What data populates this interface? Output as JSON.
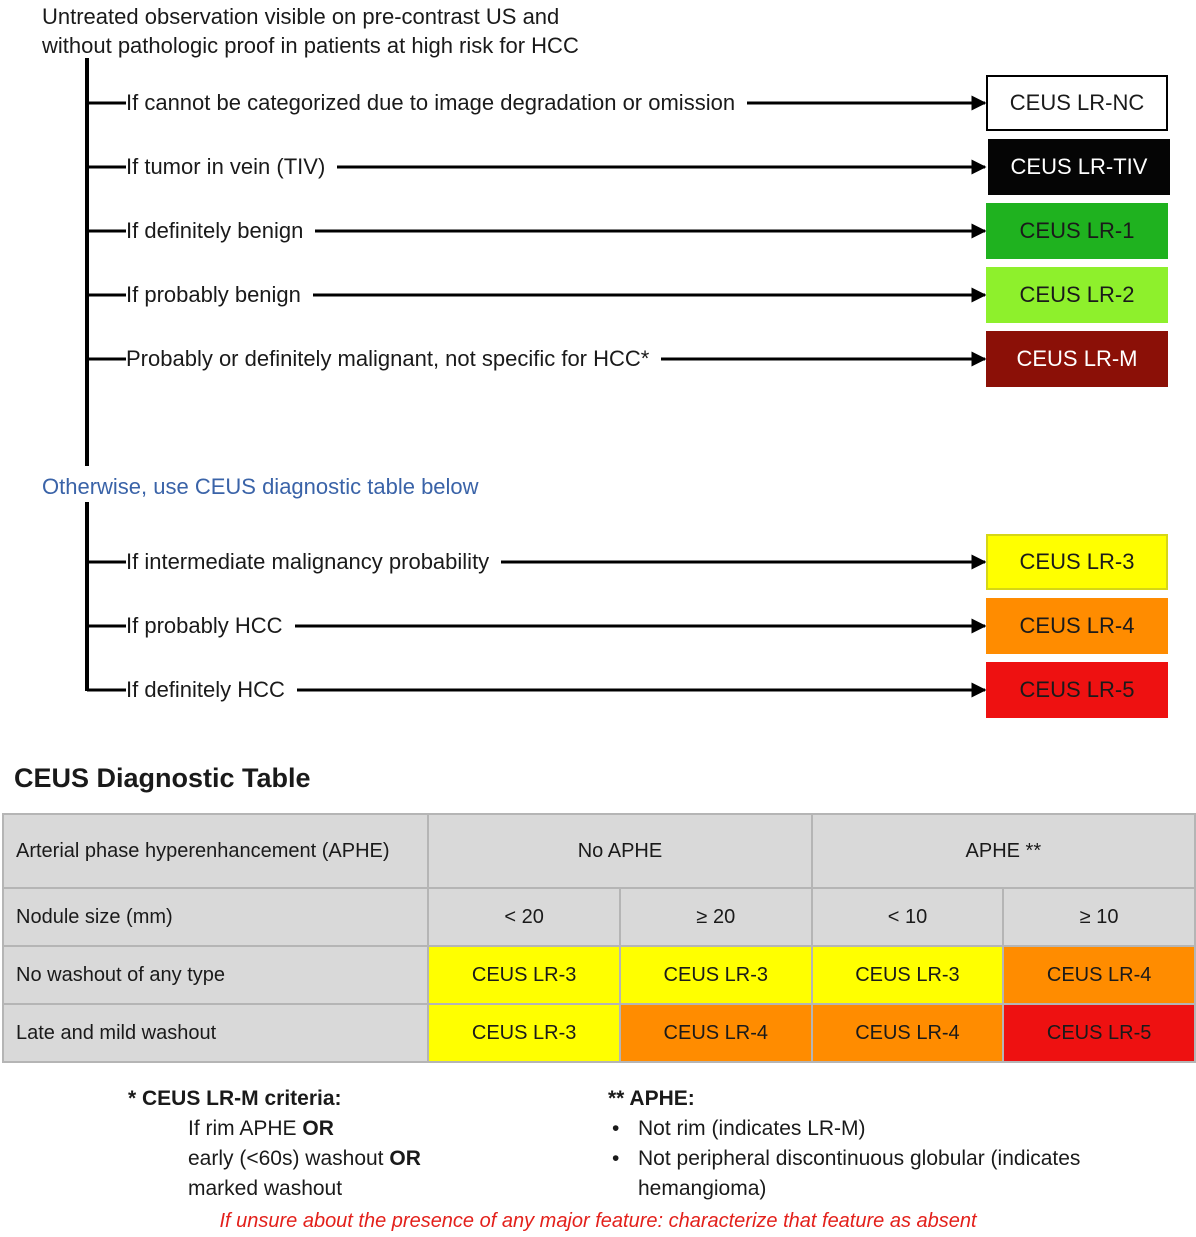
{
  "intro": {
    "line1": "Untreated observation visible on pre-contrast US and",
    "line2": "without pathologic proof in patients at high risk for HCC"
  },
  "branches": [
    {
      "text": "If cannot be categorized due to image degradation or omission",
      "result": "CEUS LR-NC",
      "bg": "#ffffff",
      "fg": "#1a1a1a"
    },
    {
      "text": "If tumor in vein (TIV)",
      "result": "CEUS LR-TIV",
      "bg": "#050505",
      "fg": "#ffffff"
    },
    {
      "text": "If definitely benign",
      "result": "CEUS LR-1",
      "bg": "#1fb21f",
      "fg": "#1a1a1a"
    },
    {
      "text": "If probably benign",
      "result": "CEUS LR-2",
      "bg": "#8ef02c",
      "fg": "#1a1a1a"
    },
    {
      "text": "Probably or definitely malignant, not specific for HCC*",
      "result": "CEUS LR-M",
      "bg": "#8b1007",
      "fg": "#ffffff"
    }
  ],
  "otherwise": "Otherwise, use CEUS diagnostic table below",
  "branches2": [
    {
      "text": "If intermediate malignancy probability",
      "result": "CEUS LR-3",
      "bg": "#ffff00",
      "fg": "#1a1a1a"
    },
    {
      "text": "If probably HCC",
      "result": "CEUS LR-4",
      "bg": "#ff8c00",
      "fg": "#1a1a1a"
    },
    {
      "text": "If definitely HCC",
      "result": "CEUS LR-5",
      "bg": "#ee1111",
      "fg": "#1a1a1a"
    }
  ],
  "table": {
    "title": "CEUS Diagnostic Table",
    "aphe_label": "Arterial phase hyperenhancement (APHE)",
    "no_aphe": "No APHE",
    "aphe": "APHE **",
    "size_label": "Nodule size (mm)",
    "sizes": [
      "< 20",
      "≥ 20",
      "< 10",
      "≥ 10"
    ],
    "rows": [
      {
        "label": "No washout of any type",
        "cells": [
          {
            "text": "CEUS LR-3",
            "bg": "#ffff00"
          },
          {
            "text": "CEUS LR-3",
            "bg": "#ffff00"
          },
          {
            "text": "CEUS LR-3",
            "bg": "#ffff00"
          },
          {
            "text": "CEUS LR-4",
            "bg": "#ff8c00"
          }
        ]
      },
      {
        "label": "Late and mild washout",
        "cells": [
          {
            "text": "CEUS LR-3",
            "bg": "#ffff00"
          },
          {
            "text": "CEUS LR-4",
            "bg": "#ff8c00"
          },
          {
            "text": "CEUS LR-4",
            "bg": "#ff8c00"
          },
          {
            "text": "CEUS LR-5",
            "bg": "#ee1111"
          }
        ]
      }
    ]
  },
  "notes": {
    "lrm_title": "* CEUS LR-M criteria:",
    "lrm_l1a": "If rim APHE",
    "lrm_or": "OR",
    "lrm_l2a": "early (<60s) washout",
    "lrm_or2": "OR",
    "lrm_l3": "marked washout",
    "aphe_title": "** APHE:",
    "aphe_b1": "Not rim (indicates LR-M)",
    "aphe_b2": "Not peripheral discontinuous globular (indicates hemangioma)"
  },
  "warning": "If unsure about the presence of any major feature: characterize that feature as absent"
}
